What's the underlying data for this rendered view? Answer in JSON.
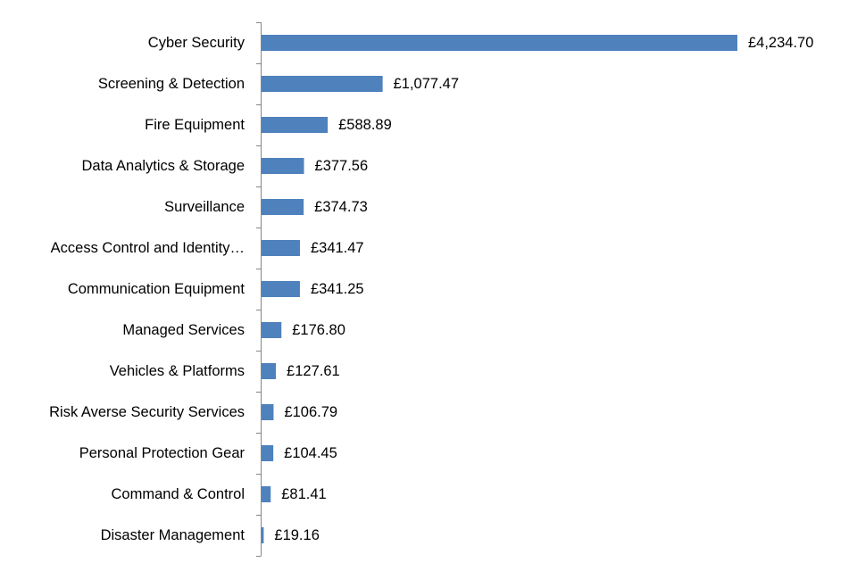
{
  "chart_data": {
    "type": "bar",
    "orientation": "horizontal",
    "title": "",
    "xlabel": "",
    "ylabel": "",
    "categories": [
      "Cyber Security",
      "Screening & Detection",
      "Fire Equipment",
      "Data Analytics & Storage",
      "Surveillance",
      "Access Control and Identity…",
      "Communication Equipment",
      "Managed Services",
      "Vehicles & Platforms",
      "Risk Averse Security Services",
      "Personal Protection Gear",
      "Command & Control",
      "Disaster Management"
    ],
    "values": [
      4234.7,
      1077.47,
      588.89,
      377.56,
      374.73,
      341.47,
      341.25,
      176.8,
      127.61,
      106.79,
      104.45,
      81.41,
      19.16
    ],
    "data_labels": [
      "£4,234.70",
      "£1,077.47",
      "£588.89",
      "£377.56",
      "£374.73",
      "£341.47",
      "£341.25",
      "£176.80",
      "£127.61",
      "£106.79",
      "£104.45",
      "£81.41",
      "£19.16"
    ],
    "xlim": [
      0,
      4234.7
    ],
    "grid": false,
    "legend": "none",
    "bar_color": "#4F81BD",
    "axis_color": "#868686"
  }
}
